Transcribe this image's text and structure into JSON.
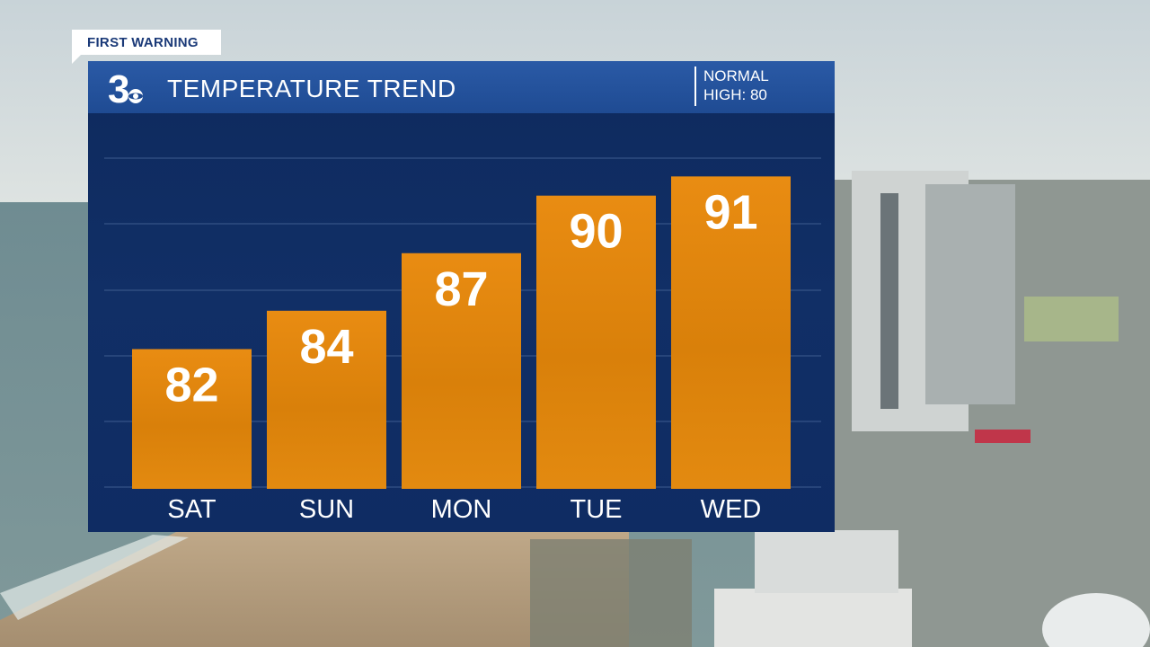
{
  "tag": "FIRST WARNING",
  "header": {
    "logo_text": "3",
    "title": "TEMPERATURE TREND",
    "normal_label": "NORMAL",
    "normal_value": "HIGH: 80"
  },
  "colors": {
    "panel": "#0f2c63",
    "header": "#2a5aa6",
    "bar": "#e2850b",
    "text": "#ffffff"
  },
  "chart_data": {
    "type": "bar",
    "categories": [
      "SAT",
      "SUN",
      "MON",
      "TUE",
      "WED"
    ],
    "values": [
      82,
      84,
      87,
      90,
      91
    ],
    "data_labels": [
      "82",
      "84",
      "87",
      "90",
      "91"
    ],
    "title": "TEMPERATURE TREND",
    "xlabel": "",
    "ylabel": "",
    "ylim": [
      72,
      92
    ],
    "grid": true,
    "grid_lines": 6
  }
}
